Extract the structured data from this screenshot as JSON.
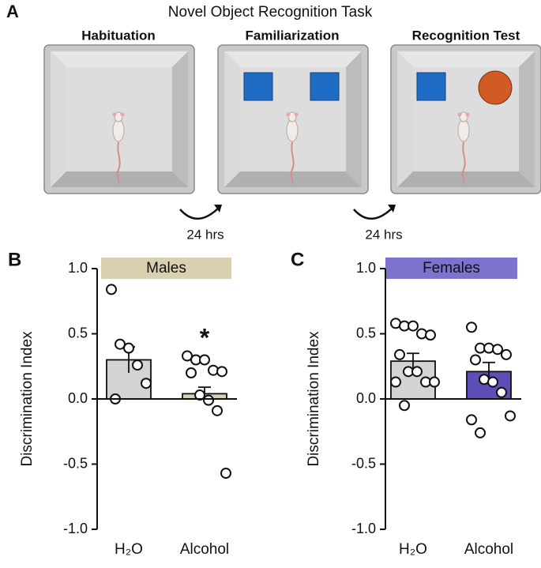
{
  "panel_a": {
    "letter": "A",
    "title": "Novel Object Recognition Task",
    "stages": [
      "Habituation",
      "Familiarization",
      "Recognition Test"
    ],
    "intervals": [
      "24 hrs",
      "24 hrs"
    ]
  },
  "chart_data": [
    {
      "type": "bar",
      "letter": "B",
      "title": "Males",
      "title_color": "#d9cfb1",
      "ylabel": "Discrimination Index",
      "categories": [
        "H₂O",
        "Alcohol"
      ],
      "values": [
        0.3,
        0.04
      ],
      "errors": [
        0.1,
        0.05
      ],
      "colors": [
        "#d3d3d3",
        "#dacfb2"
      ],
      "points": [
        [
          0.84,
          0.42,
          0.39,
          0.26,
          0.12,
          0.0
        ],
        [
          0.33,
          0.3,
          0.3,
          0.22,
          0.21,
          0.2,
          0.03,
          -0.01,
          -0.09,
          -0.57
        ]
      ],
      "annotation": "*",
      "ylim": [
        -1,
        1
      ],
      "yticks": [
        {
          "value": -1,
          "label": "-1.0"
        },
        -0.5,
        {
          "value": 0,
          "label": "0.0"
        },
        0.5,
        {
          "value": 1,
          "label": "1.0"
        }
      ]
    },
    {
      "type": "bar",
      "letter": "C",
      "title": "Females",
      "title_color": "#7c74cc",
      "ylabel": "Discrimination Index",
      "categories": [
        "H₂O",
        "Alcohol"
      ],
      "values": [
        0.29,
        0.21
      ],
      "errors": [
        0.06,
        0.07
      ],
      "colors": [
        "#d3d3d3",
        "#5c50b8"
      ],
      "points": [
        [
          0.58,
          0.56,
          0.56,
          0.5,
          0.49,
          0.34,
          0.21,
          0.21,
          0.13,
          0.13,
          0.13,
          -0.05
        ],
        [
          0.55,
          0.39,
          0.39,
          0.38,
          0.34,
          0.3,
          0.15,
          0.13,
          0.05,
          -0.13,
          -0.16,
          -0.26
        ]
      ],
      "ylim": [
        -1,
        1
      ],
      "yticks": [
        {
          "value": -1,
          "label": "-1.0"
        },
        -0.5,
        {
          "value": 0,
          "label": "0.0"
        },
        0.5,
        {
          "value": 1,
          "label": "1.0"
        }
      ]
    }
  ]
}
